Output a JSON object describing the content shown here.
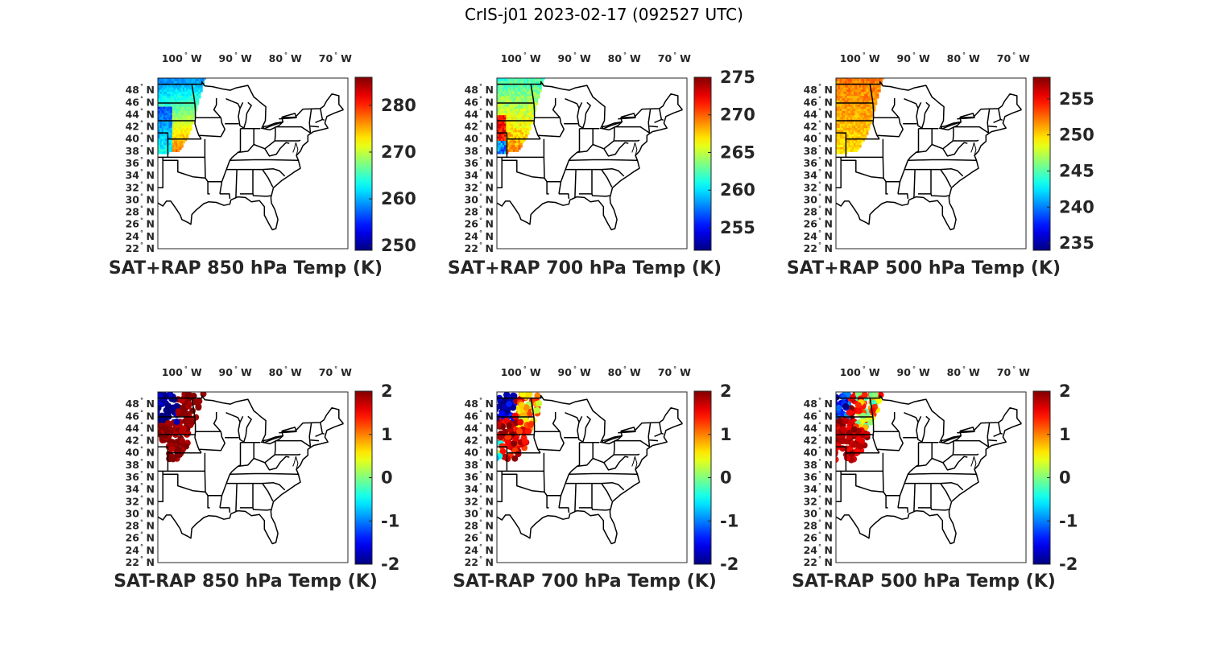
{
  "title": "CrIS-j01 2023-02-17 (092527 UTC)",
  "lat_ticks": [
    {
      "value": 48,
      "text": "48"
    },
    {
      "value": 46,
      "text": "46"
    },
    {
      "value": 44,
      "text": "44"
    },
    {
      "value": 42,
      "text": "42"
    },
    {
      "value": 40,
      "text": "40"
    },
    {
      "value": 38,
      "text": "38"
    },
    {
      "value": 36,
      "text": "36"
    },
    {
      "value": 34,
      "text": "34"
    },
    {
      "value": 32,
      "text": "32"
    },
    {
      "value": 30,
      "text": "30"
    },
    {
      "value": 28,
      "text": "28"
    },
    {
      "value": 26,
      "text": "26"
    },
    {
      "value": 24,
      "text": "24"
    },
    {
      "value": 22,
      "text": "22"
    }
  ],
  "lat_hemisphere": "N",
  "lon_ticks": [
    {
      "value": -100,
      "text": "100"
    },
    {
      "value": -90,
      "text": "90"
    },
    {
      "value": -80,
      "text": "80"
    },
    {
      "value": -70,
      "text": "70"
    }
  ],
  "lon_hemisphere": "W",
  "degree_symbol": "°",
  "map_extent": {
    "lon_min": -104,
    "lon_max": -66,
    "lat_min": 22,
    "lat_max": 50
  },
  "colormap": "jet",
  "panels": [
    {
      "id": "p850",
      "title": "SAT+RAP 850 hPa Temp (K)",
      "kind": "field",
      "clim": [
        249,
        286
      ],
      "ticks": [
        250,
        260,
        270,
        280
      ],
      "tick_labels": [
        "250",
        "260",
        "270",
        "280"
      ]
    },
    {
      "id": "p700",
      "title": "SAT+RAP 700 hPa Temp (K)",
      "kind": "field",
      "clim": [
        252,
        275
      ],
      "ticks": [
        255,
        260,
        265,
        270,
        275
      ],
      "tick_labels": [
        "255",
        "260",
        "265",
        "270",
        "275"
      ]
    },
    {
      "id": "p500",
      "title": "SAT+RAP 500 hPa Temp (K)",
      "kind": "field",
      "clim": [
        234,
        258
      ],
      "ticks": [
        235,
        240,
        245,
        250,
        255
      ],
      "tick_labels": [
        "235",
        "240",
        "245",
        "250",
        "255"
      ]
    },
    {
      "id": "d850",
      "title": "SAT-RAP 850 hPa Temp (K)",
      "kind": "diff",
      "clim": [
        -2,
        2
      ],
      "ticks": [
        -2,
        -1,
        0,
        1,
        2
      ],
      "tick_labels": [
        "-2",
        "-1",
        "0",
        "1",
        "2"
      ]
    },
    {
      "id": "d700",
      "title": "SAT-RAP 700 hPa Temp (K)",
      "kind": "diff",
      "clim": [
        -2,
        2
      ],
      "ticks": [
        -2,
        -1,
        0,
        1,
        2
      ],
      "tick_labels": [
        "-2",
        "-1",
        "0",
        "1",
        "2"
      ]
    },
    {
      "id": "d500",
      "title": "SAT-RAP 500 hPa Temp (K)",
      "kind": "diff",
      "clim": [
        -2,
        2
      ],
      "ticks": [
        -2,
        -1,
        0,
        1,
        2
      ],
      "tick_labels": [
        "-2",
        "-1",
        "0",
        "1",
        "2"
      ]
    }
  ]
}
